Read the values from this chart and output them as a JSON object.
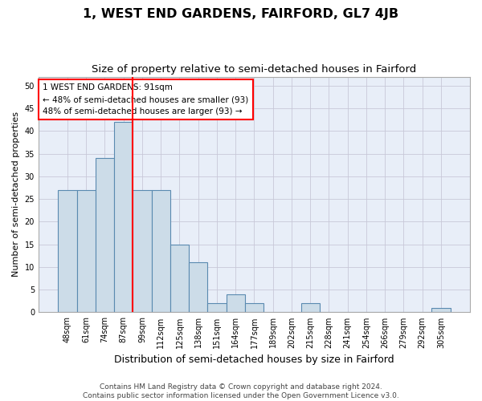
{
  "title": "1, WEST END GARDENS, FAIRFORD, GL7 4JB",
  "subtitle": "Size of property relative to semi-detached houses in Fairford",
  "xlabel": "Distribution of semi-detached houses by size in Fairford",
  "ylabel": "Number of semi-detached properties",
  "footer_line1": "Contains HM Land Registry data © Crown copyright and database right 2024.",
  "footer_line2": "Contains public sector information licensed under the Open Government Licence v3.0.",
  "categories": [
    "48sqm",
    "61sqm",
    "74sqm",
    "87sqm",
    "99sqm",
    "112sqm",
    "125sqm",
    "138sqm",
    "151sqm",
    "164sqm",
    "177sqm",
    "189sqm",
    "202sqm",
    "215sqm",
    "228sqm",
    "241sqm",
    "254sqm",
    "266sqm",
    "279sqm",
    "292sqm",
    "305sqm"
  ],
  "values": [
    27,
    27,
    34,
    42,
    27,
    27,
    15,
    11,
    2,
    4,
    2,
    0,
    0,
    2,
    0,
    0,
    0,
    0,
    0,
    0,
    1
  ],
  "bar_color": "#ccdce8",
  "bar_edge_color": "#5a8ab0",
  "bar_linewidth": 0.8,
  "red_line_bar_index": 4,
  "annotation_text_line1": "1 WEST END GARDENS: 91sqm",
  "annotation_text_line2": "← 48% of semi-detached houses are smaller (93)",
  "annotation_text_line3": "48% of semi-detached houses are larger (93) →",
  "annotation_box_color": "white",
  "annotation_box_edge_color": "red",
  "ylim": [
    0,
    52
  ],
  "yticks": [
    0,
    5,
    10,
    15,
    20,
    25,
    30,
    35,
    40,
    45,
    50
  ],
  "grid_color": "#c8c8d8",
  "bg_color": "#e8eef8",
  "title_fontsize": 11.5,
  "subtitle_fontsize": 9.5,
  "xlabel_fontsize": 9,
  "ylabel_fontsize": 8,
  "tick_fontsize": 7,
  "annotation_fontsize": 7.5,
  "footer_fontsize": 6.5
}
